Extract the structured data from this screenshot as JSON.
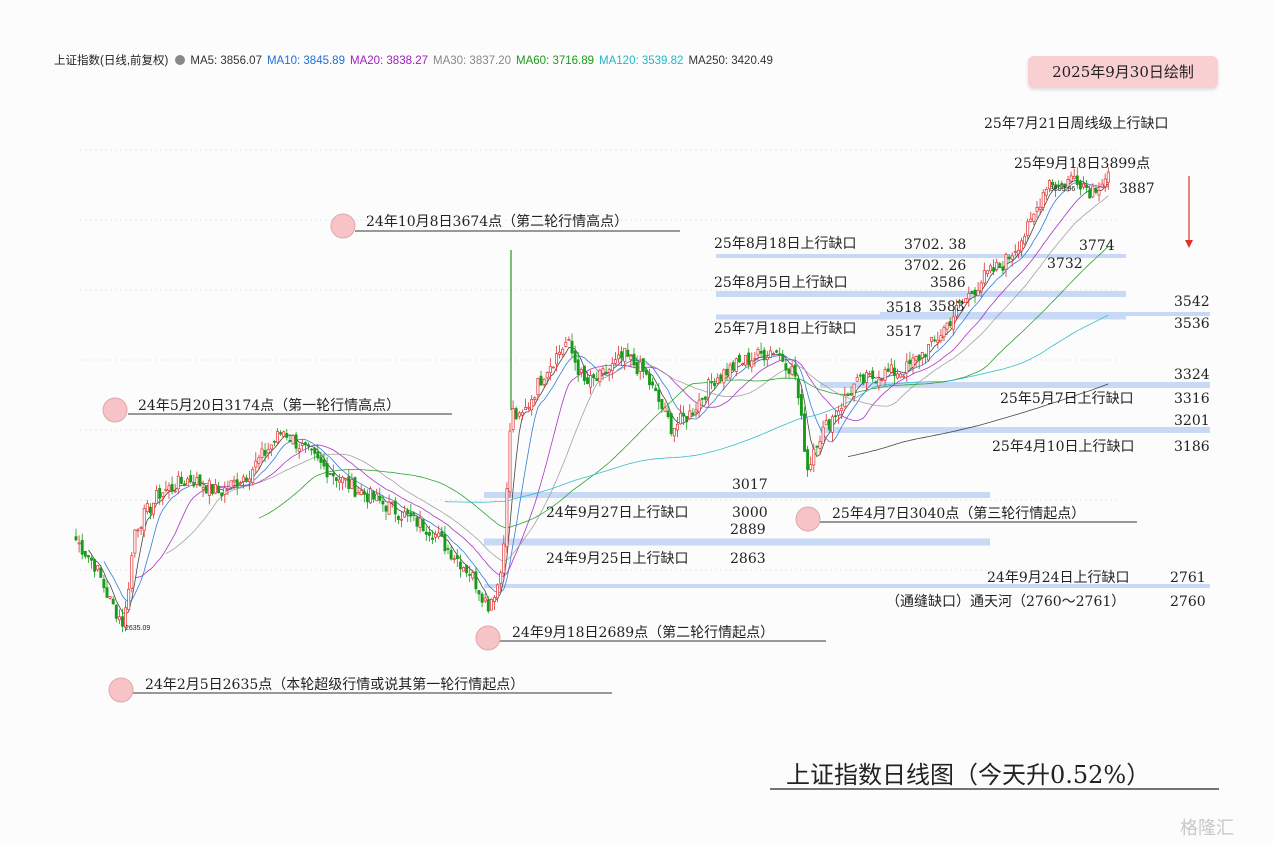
{
  "header": {
    "symbol_text": "上证指数(日线,前复权)",
    "ma": [
      {
        "label": "MA5: 3856.07",
        "color": "#333333"
      },
      {
        "label": "MA10: 3845.89",
        "color": "#1e6fd9"
      },
      {
        "label": "MA20: 3838.27",
        "color": "#a020c0"
      },
      {
        "label": "MA30: 3837.20",
        "color": "#888888"
      },
      {
        "label": "MA60: 3716.89",
        "color": "#1a9a1a"
      },
      {
        "label": "MA120: 3539.82",
        "color": "#20b8c8"
      },
      {
        "label": "MA250: 3420.49",
        "color": "#333333"
      }
    ]
  },
  "badge": "2025年9月30日绘制",
  "title": "上证指数日线图（今天升0.52%）",
  "watermark": "格隆汇",
  "chart_data": {
    "type": "candlestick",
    "ylim": [
      2600,
      3920
    ],
    "colors": {
      "up": "#e03030",
      "down": "#1a9a1a"
    },
    "key_points": [
      {
        "date": "2024-02-05",
        "close": 2635,
        "low_label": "2635.09"
      },
      {
        "date": "2024-05-20",
        "close": 3174
      },
      {
        "date": "2024-09-18",
        "close": 2689
      },
      {
        "date": "2024-10-08",
        "close": 3674
      },
      {
        "date": "2025-04-07",
        "close": 3040
      },
      {
        "date": "2025-09-18",
        "close": 3899,
        "high_label": "3899.96"
      },
      {
        "date": "2025-09-30",
        "close": 3887
      }
    ],
    "gap_levels": [
      {
        "label": "25年8月18日上行缺口",
        "lo": 3702.26,
        "hi": 3702.38
      },
      {
        "label": "25年8月5日上行缺口",
        "lo": 3583,
        "hi": 3586
      },
      {
        "label": "25年7月18日上行缺口",
        "lo": 3517,
        "hi": 3518
      },
      {
        "label": "",
        "lo": 3536,
        "hi": 3542
      },
      {
        "label": "25年5月7日上行缺口",
        "lo": 3316,
        "hi": 3324
      },
      {
        "label": "25年4月10日上行缺口",
        "lo": 3186,
        "hi": 3201
      },
      {
        "label": "24年9月27日上行缺口",
        "lo": 3000,
        "hi": 3017
      },
      {
        "label": "24年9月25日上行缺口",
        "lo": 2863,
        "hi": 2889
      },
      {
        "label": "24年9月24日上行缺口",
        "lo": 2760,
        "hi": 2761
      }
    ],
    "annotations": {
      "weekly_gap": "25年7月21日周线级上行缺口",
      "high_0918": "25年9月18日3899点",
      "last": "3887",
      "v3774": "3774",
      "v3732": "3732",
      "gap_0818": "25年8月18日上行缺口",
      "v3702_38": "3702. 38",
      "v3702_26": "3702. 26",
      "gap_0805": "25年8月5日上行缺口",
      "v3586": "3586",
      "v3518": "3518",
      "v3583": "3583",
      "gap_0718": "25年7月18日上行缺口",
      "v3517": "3517",
      "v3542": "3542",
      "v3536": "3536",
      "v3324": "3324",
      "gap_0507": "25年5月7日上行缺口",
      "v3316": "3316",
      "v3201": "3201",
      "gap_0410": "25年4月10日上行缺口",
      "v3186": "3186",
      "v3017": "3017",
      "gap_0927": "24年9月27日上行缺口",
      "v3000": "3000",
      "v2889": "2889",
      "gap_0925": "24年9月25日上行缺口",
      "v2863": "2863",
      "gap_0924": "24年9月24日上行缺口",
      "v2761": "2761",
      "tongtianhe": "（通缝缺口）通天河（2760～2761）",
      "v2760": "2760",
      "hi_1008": "24年10月8日3674点（第二轮行情高点）",
      "hi_0520": "24年5月20日3174点（第一轮行情高点）",
      "lo_0407": "25年4月7日3040点（第三轮行情起点）",
      "lo_0918": "24年9月18日2689点（第二轮行情起点）",
      "lo_0205": "24年2月5日2635点（本轮超级行情或说其第一轮行情起点）",
      "low_tag": "2635.09",
      "high_tag": "3899.96"
    }
  }
}
